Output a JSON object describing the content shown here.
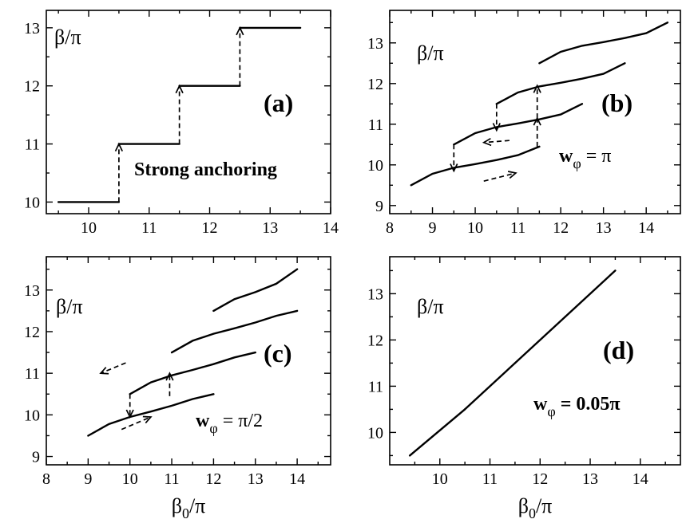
{
  "chart_data": [
    {
      "type": "line",
      "panel_label": "(a)",
      "ylabel": "β/π",
      "xlabel": "",
      "note": "Strong anchoring",
      "xlim": [
        9.3,
        14.0
      ],
      "ylim": [
        9.8,
        13.3
      ],
      "xticks": [
        10,
        11,
        12,
        13,
        14
      ],
      "yticks": [
        10,
        11,
        12,
        13
      ],
      "series": [
        {
          "x": [
            9.5,
            10.5
          ],
          "y": [
            10,
            10
          ]
        },
        {
          "x": [
            10.5,
            11.5
          ],
          "y": [
            11,
            11
          ]
        },
        {
          "x": [
            11.5,
            12.5
          ],
          "y": [
            12,
            12
          ]
        },
        {
          "x": [
            12.5,
            13.5
          ],
          "y": [
            13,
            13
          ]
        }
      ],
      "arrows": [
        {
          "from": [
            10.5,
            10
          ],
          "to": [
            10.5,
            11
          ]
        },
        {
          "from": [
            11.5,
            11
          ],
          "to": [
            11.5,
            12
          ]
        },
        {
          "from": [
            12.5,
            12
          ],
          "to": [
            12.5,
            13
          ]
        }
      ]
    },
    {
      "type": "line",
      "panel_label": "(b)",
      "ylabel": "β/π",
      "xlabel": "",
      "note_prefix": "w",
      "note_sub": "φ",
      "note_suffix": " = π",
      "xlim": [
        8.0,
        14.8
      ],
      "ylim": [
        8.8,
        13.8
      ],
      "xticks": [
        8,
        9,
        10,
        11,
        12,
        13,
        14
      ],
      "yticks": [
        9,
        10,
        11,
        12,
        13
      ],
      "series": [
        {
          "x": [
            8.5,
            9.0,
            9.5,
            10.0,
            10.5,
            11.0,
            11.5
          ],
          "y": [
            9.5,
            9.78,
            9.93,
            10.02,
            10.12,
            10.24,
            10.45
          ]
        },
        {
          "x": [
            9.5,
            10.0,
            10.5,
            11.0,
            11.5,
            12.0,
            12.5
          ],
          "y": [
            10.5,
            10.78,
            10.93,
            11.02,
            11.12,
            11.24,
            11.5
          ]
        },
        {
          "x": [
            10.5,
            11.0,
            11.5,
            12.0,
            12.5,
            13.0,
            13.5
          ],
          "y": [
            11.5,
            11.78,
            11.93,
            12.02,
            12.12,
            12.24,
            12.5
          ]
        },
        {
          "x": [
            11.5,
            12.0,
            12.5,
            13.0,
            13.5,
            14.0,
            14.5
          ],
          "y": [
            12.5,
            12.78,
            12.93,
            13.02,
            13.12,
            13.24,
            13.5
          ]
        }
      ],
      "arrows": [
        {
          "from": [
            11.45,
            10.45
          ],
          "to": [
            11.45,
            11.15
          ]
        },
        {
          "from": [
            11.45,
            11.15
          ],
          "to": [
            11.45,
            11.95
          ]
        },
        {
          "from": [
            10.5,
            11.5
          ],
          "to": [
            10.5,
            10.85
          ]
        },
        {
          "from": [
            9.5,
            10.5
          ],
          "to": [
            9.5,
            9.85
          ]
        },
        {
          "from": [
            10.8,
            10.6
          ],
          "to": [
            10.2,
            10.55
          ]
        },
        {
          "from": [
            10.2,
            9.6
          ],
          "to": [
            10.95,
            9.8
          ]
        }
      ]
    },
    {
      "type": "line",
      "panel_label": "(c)",
      "ylabel": "β/π",
      "xlabel": "β₀/π",
      "note_prefix": "w",
      "note_sub": "φ",
      "note_suffix": " = π/2",
      "xlim": [
        8.0,
        14.8
      ],
      "ylim": [
        8.8,
        13.8
      ],
      "xticks": [
        8,
        9,
        10,
        11,
        12,
        13,
        14
      ],
      "yticks": [
        9,
        10,
        11,
        12,
        13
      ],
      "series": [
        {
          "x": [
            9.0,
            9.5,
            10.0,
            10.5,
            11.0,
            11.5,
            12.0
          ],
          "y": [
            9.5,
            9.78,
            9.95,
            10.08,
            10.22,
            10.38,
            10.5
          ]
        },
        {
          "x": [
            10.0,
            10.5,
            11.0,
            11.5,
            12.0,
            12.5,
            13.0
          ],
          "y": [
            10.5,
            10.78,
            10.95,
            11.08,
            11.22,
            11.38,
            11.5
          ]
        },
        {
          "x": [
            11.0,
            11.5,
            12.0,
            12.5,
            13.0,
            13.5,
            14.0
          ],
          "y": [
            11.5,
            11.78,
            11.95,
            12.08,
            12.22,
            12.38,
            12.5
          ]
        },
        {
          "x": [
            12.0,
            12.5,
            13.0,
            13.5,
            14.0
          ],
          "y": [
            12.5,
            12.78,
            12.95,
            13.15,
            13.5
          ]
        }
      ],
      "arrows": [
        {
          "from": [
            10.0,
            10.5
          ],
          "to": [
            10.0,
            9.95
          ]
        },
        {
          "from": [
            10.95,
            10.45
          ],
          "to": [
            10.95,
            11.0
          ]
        },
        {
          "from": [
            9.9,
            11.25
          ],
          "to": [
            9.3,
            11.0
          ]
        },
        {
          "from": [
            9.8,
            9.65
          ],
          "to": [
            10.5,
            9.95
          ]
        }
      ]
    },
    {
      "type": "line",
      "panel_label": "(d)",
      "ylabel": "β/π",
      "xlabel": "β₀/π",
      "note_prefix": "w",
      "note_sub": "φ",
      "note_suffix": " = 0.05π",
      "xlim": [
        9.0,
        14.8
      ],
      "ylim": [
        9.3,
        13.8
      ],
      "xticks": [
        10,
        11,
        12,
        13,
        14
      ],
      "yticks": [
        10,
        11,
        12,
        13
      ],
      "series": [
        {
          "x": [
            9.4,
            10.5
          ],
          "y": [
            9.5,
            10.5
          ]
        },
        {
          "x": [
            10.5,
            11.5
          ],
          "y": [
            10.5,
            11.5
          ]
        },
        {
          "x": [
            11.5,
            12.5
          ],
          "y": [
            11.5,
            12.5
          ]
        },
        {
          "x": [
            12.5,
            13.5
          ],
          "y": [
            12.5,
            13.5
          ]
        }
      ],
      "arrows": []
    }
  ]
}
